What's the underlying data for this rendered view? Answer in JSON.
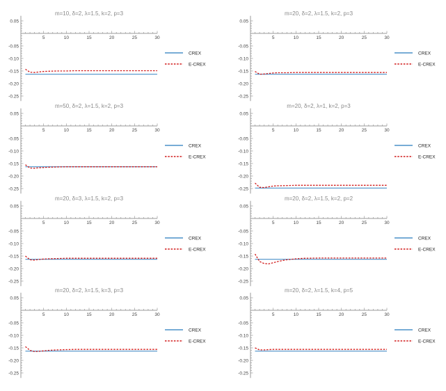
{
  "legend": {
    "crex": {
      "label": "CREX",
      "color": "#4a90c8"
    },
    "ecrex": {
      "label": "E-CREX",
      "color": "#d01a1a"
    }
  },
  "axis_color": "#999999",
  "tick_label_color": "#444444",
  "title_color": "#888888",
  "chart_data": [
    {
      "type": "line",
      "title": "m=10, δ=2, λ=1.5, k=2, p=3",
      "xlim": [
        0,
        30
      ],
      "ylim": [
        -0.27,
        0.07
      ],
      "xticks": [
        5,
        10,
        15,
        20,
        25,
        30
      ],
      "yticks": [
        0.05,
        -0.05,
        -0.1,
        -0.15,
        -0.2,
        -0.25
      ],
      "legend": "right",
      "series": [
        {
          "name": "CREX",
          "style": "solid",
          "x": [
            1,
            30
          ],
          "y": [
            -0.163,
            -0.163
          ]
        },
        {
          "name": "E-CREX",
          "style": "dashed",
          "x": [
            1,
            2,
            3,
            4,
            5,
            6,
            8,
            10,
            12,
            15,
            20,
            25,
            30
          ],
          "y": [
            -0.143,
            -0.155,
            -0.156,
            -0.154,
            -0.152,
            -0.151,
            -0.15,
            -0.15,
            -0.149,
            -0.149,
            -0.149,
            -0.149,
            -0.149
          ]
        }
      ]
    },
    {
      "type": "line",
      "title": "m=20, δ=2, λ=1.5, k=2, p=3",
      "xlim": [
        0,
        30
      ],
      "ylim": [
        -0.27,
        0.07
      ],
      "xticks": [
        5,
        10,
        15,
        20,
        25,
        30
      ],
      "yticks": [
        0.05,
        -0.05,
        -0.1,
        -0.15,
        -0.2,
        -0.25
      ],
      "legend": "right",
      "series": [
        {
          "name": "CREX",
          "style": "solid",
          "x": [
            1,
            30
          ],
          "y": [
            -0.163,
            -0.163
          ]
        },
        {
          "name": "E-CREX",
          "style": "dashed",
          "x": [
            1,
            2,
            3,
            4,
            5,
            6,
            8,
            10,
            12,
            15,
            20,
            25,
            30
          ],
          "y": [
            -0.152,
            -0.163,
            -0.162,
            -0.16,
            -0.158,
            -0.157,
            -0.157,
            -0.156,
            -0.156,
            -0.156,
            -0.156,
            -0.156,
            -0.156
          ]
        }
      ]
    },
    {
      "type": "line",
      "title": "m=50, δ=2, λ=1.5, k=2, p=3",
      "xlim": [
        0,
        30
      ],
      "ylim": [
        -0.27,
        0.07
      ],
      "xticks": [
        5,
        10,
        15,
        20,
        25,
        30
      ],
      "yticks": [
        0.05,
        -0.05,
        -0.1,
        -0.15,
        -0.2,
        -0.25
      ],
      "legend": "right",
      "series": [
        {
          "name": "CREX",
          "style": "solid",
          "x": [
            1,
            30
          ],
          "y": [
            -0.163,
            -0.163
          ]
        },
        {
          "name": "E-CREX",
          "style": "dashed",
          "x": [
            1,
            2,
            3,
            4,
            5,
            6,
            8,
            10,
            12,
            15,
            20,
            25,
            30
          ],
          "y": [
            -0.155,
            -0.168,
            -0.169,
            -0.167,
            -0.166,
            -0.165,
            -0.164,
            -0.163,
            -0.163,
            -0.163,
            -0.163,
            -0.163,
            -0.163
          ]
        }
      ]
    },
    {
      "type": "line",
      "title": "m=20, δ=2, λ=1, k=2, p=3",
      "xlim": [
        0,
        30
      ],
      "ylim": [
        -0.27,
        0.07
      ],
      "xticks": [
        5,
        10,
        15,
        20,
        25,
        30
      ],
      "yticks": [
        0.05,
        -0.05,
        -0.1,
        -0.15,
        -0.2,
        -0.25
      ],
      "legend": "right",
      "series": [
        {
          "name": "CREX",
          "style": "solid",
          "x": [
            1,
            30
          ],
          "y": [
            -0.248,
            -0.248
          ]
        },
        {
          "name": "E-CREX",
          "style": "dashed",
          "x": [
            1,
            2,
            3,
            4,
            5,
            6,
            8,
            10,
            12,
            15,
            20,
            25,
            30
          ],
          "y": [
            -0.228,
            -0.245,
            -0.246,
            -0.243,
            -0.24,
            -0.239,
            -0.238,
            -0.237,
            -0.237,
            -0.237,
            -0.237,
            -0.237,
            -0.237
          ]
        }
      ]
    },
    {
      "type": "line",
      "title": "m=20, δ=3, λ=1.5, k=2, p=3",
      "xlim": [
        0,
        30
      ],
      "ylim": [
        -0.27,
        0.07
      ],
      "xticks": [
        5,
        10,
        15,
        20,
        25,
        30
      ],
      "yticks": [
        0.05,
        -0.05,
        -0.1,
        -0.15,
        -0.2,
        -0.25
      ],
      "legend": "right",
      "series": [
        {
          "name": "CREX",
          "style": "solid",
          "x": [
            1,
            30
          ],
          "y": [
            -0.163,
            -0.163
          ]
        },
        {
          "name": "E-CREX",
          "style": "dashed",
          "x": [
            1,
            2,
            3,
            4,
            5,
            6,
            8,
            10,
            12,
            15,
            20,
            25,
            30
          ],
          "y": [
            -0.15,
            -0.165,
            -0.166,
            -0.164,
            -0.162,
            -0.161,
            -0.16,
            -0.159,
            -0.159,
            -0.159,
            -0.159,
            -0.159,
            -0.159
          ]
        }
      ]
    },
    {
      "type": "line",
      "title": "m=20, δ=2, λ=1.5, k=2, p=2",
      "xlim": [
        0,
        30
      ],
      "ylim": [
        -0.27,
        0.07
      ],
      "xticks": [
        5,
        10,
        15,
        20,
        25,
        30
      ],
      "yticks": [
        0.05,
        -0.05,
        -0.1,
        -0.15,
        -0.2,
        -0.25
      ],
      "legend": "right",
      "series": [
        {
          "name": "CREX",
          "style": "solid",
          "x": [
            1,
            30
          ],
          "y": [
            -0.163,
            -0.163
          ]
        },
        {
          "name": "E-CREX",
          "style": "dashed",
          "x": [
            1,
            2,
            3,
            4,
            5,
            6,
            7,
            8,
            10,
            12,
            15,
            20,
            25,
            30
          ],
          "y": [
            -0.142,
            -0.172,
            -0.18,
            -0.181,
            -0.177,
            -0.172,
            -0.168,
            -0.165,
            -0.161,
            -0.159,
            -0.158,
            -0.158,
            -0.158,
            -0.158
          ]
        }
      ]
    },
    {
      "type": "line",
      "title": "m=20, δ=2, λ=1.5, k=3, p=3",
      "xlim": [
        0,
        30
      ],
      "ylim": [
        -0.27,
        0.07
      ],
      "xticks": [
        5,
        10,
        15,
        20,
        25,
        30
      ],
      "yticks": [
        0.05,
        -0.05,
        -0.1,
        -0.15,
        -0.2,
        -0.25
      ],
      "legend": "right",
      "series": [
        {
          "name": "CREX",
          "style": "solid",
          "x": [
            1,
            30
          ],
          "y": [
            -0.163,
            -0.163
          ]
        },
        {
          "name": "E-CREX",
          "style": "dashed",
          "x": [
            1,
            2,
            3,
            4,
            5,
            6,
            8,
            10,
            12,
            15,
            20,
            25,
            30
          ],
          "y": [
            -0.145,
            -0.16,
            -0.165,
            -0.164,
            -0.162,
            -0.16,
            -0.158,
            -0.157,
            -0.156,
            -0.156,
            -0.156,
            -0.156,
            -0.156
          ]
        }
      ]
    },
    {
      "type": "line",
      "title": "m=20, δ=2, λ=1.5, k=4, p=5",
      "xlim": [
        0,
        30
      ],
      "ylim": [
        -0.27,
        0.07
      ],
      "xticks": [
        5,
        10,
        15,
        20,
        25,
        30
      ],
      "yticks": [
        0.05,
        -0.05,
        -0.1,
        -0.15,
        -0.2,
        -0.25
      ],
      "legend": "right",
      "series": [
        {
          "name": "CREX",
          "style": "solid",
          "x": [
            1,
            30
          ],
          "y": [
            -0.163,
            -0.163
          ]
        },
        {
          "name": "E-CREX",
          "style": "dashed",
          "x": [
            1,
            2,
            3,
            4,
            5,
            6,
            8,
            10,
            12,
            15,
            20,
            25,
            30
          ],
          "y": [
            -0.15,
            -0.158,
            -0.158,
            -0.157,
            -0.156,
            -0.156,
            -0.156,
            -0.156,
            -0.156,
            -0.156,
            -0.156,
            -0.156,
            -0.156
          ]
        }
      ]
    }
  ]
}
